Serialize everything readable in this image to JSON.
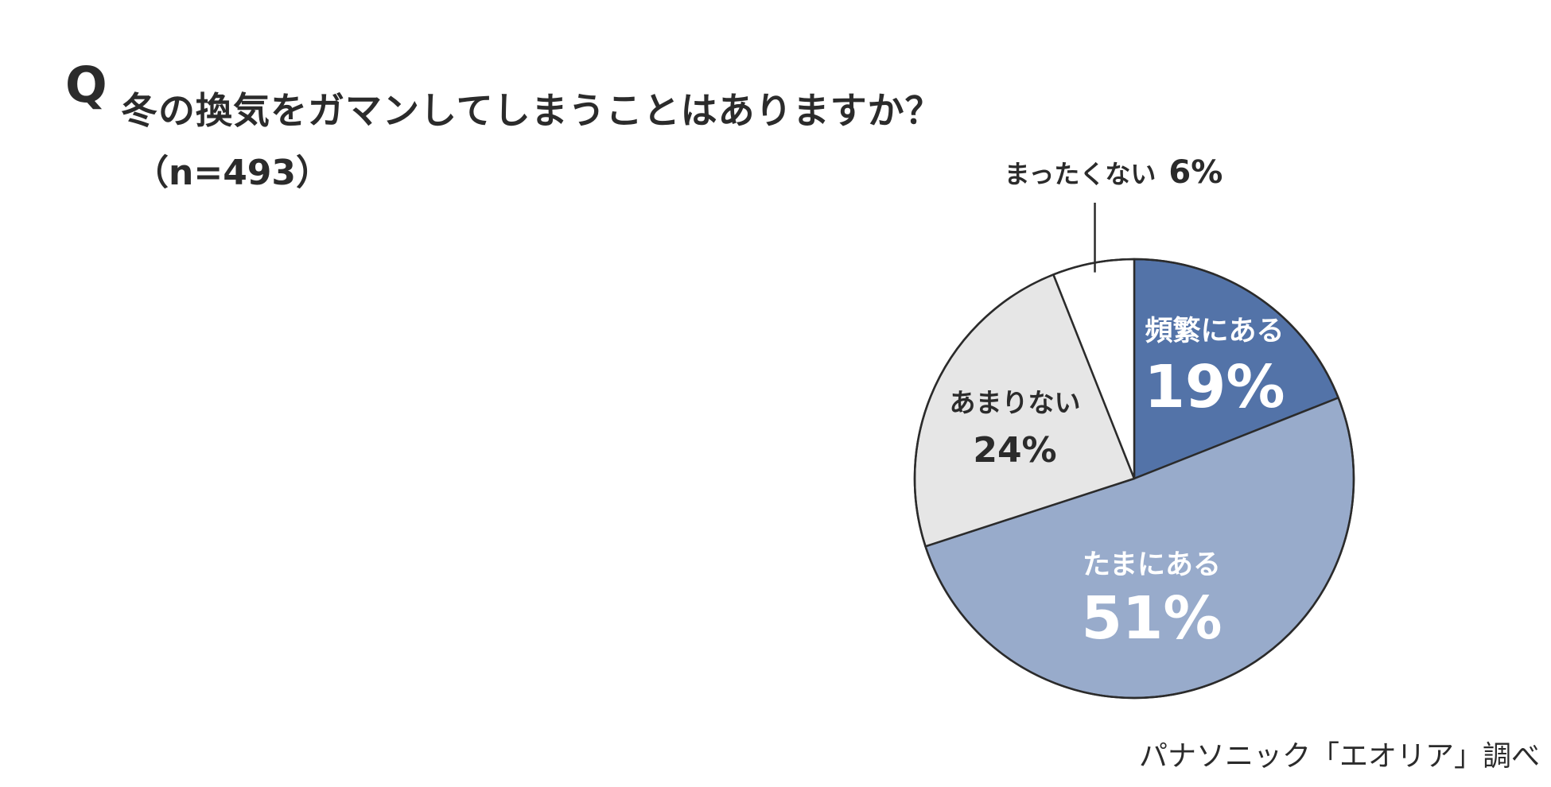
{
  "question": {
    "prefix": "Q",
    "text": "冬の換気をガマンしてしまうことはありますか？",
    "sample": "（n=493）"
  },
  "source": "パナソニック「エオリア」調べ",
  "colors": {
    "frequently": "#5373a8",
    "sometimes": "#98abcb",
    "rarely": "#e6e6e6",
    "never": "#ffffff",
    "outline": "#2b2b2b"
  },
  "chart_data": {
    "type": "pie",
    "start_angle_deg": 0,
    "direction": "clockwise",
    "slices": [
      {
        "label": "頻繁にある",
        "value": 19,
        "value_label": "19%",
        "color": "#5373a8",
        "text_color": "#ffffff"
      },
      {
        "label": "たまにある",
        "value": 51,
        "value_label": "51%",
        "color": "#98abcb",
        "text_color": "#ffffff"
      },
      {
        "label": "あまりない",
        "value": 24,
        "value_label": "24%",
        "color": "#e6e6e6",
        "text_color": "#2b2b2b"
      },
      {
        "label": "まったくない",
        "value": 6,
        "value_label": "6%",
        "color": "#ffffff",
        "text_color": "#2b2b2b",
        "callout": true
      }
    ]
  }
}
